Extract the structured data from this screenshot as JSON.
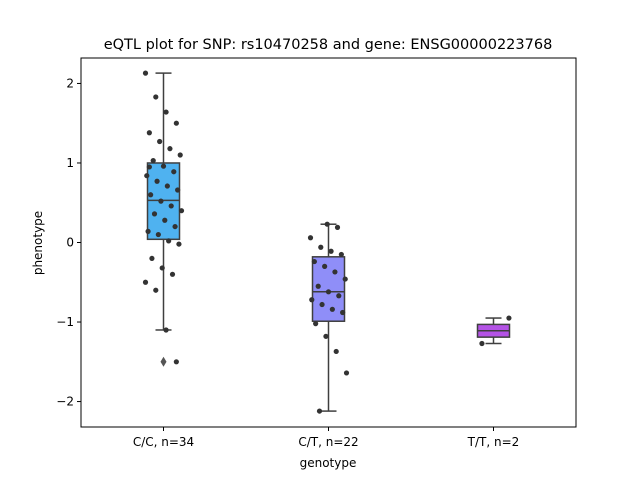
{
  "chart_data": {
    "type": "box",
    "title": "eQTL plot for SNP: rs10470258 and gene: ENSG00000223768",
    "xlabel": "genotype",
    "ylabel": "phenotype",
    "categories": [
      "C/C, n=34",
      "C/T, n=22",
      "T/T, n=2"
    ],
    "ylim": [
      -2.32,
      2.32
    ],
    "yticks": [
      -2,
      -1,
      0,
      1,
      2
    ],
    "ytick_labels": [
      "−2",
      "−1",
      "0",
      "1",
      "2"
    ],
    "grid": false,
    "colors": [
      "#4fb2f0",
      "#8f8ef8",
      "#b453e6"
    ],
    "boxes": [
      {
        "q1": 0.04,
        "median": 0.53,
        "q3": 1.0,
        "whisker_low": -1.1,
        "whisker_high": 2.13,
        "outliers": [
          -1.5
        ]
      },
      {
        "q1": -0.99,
        "median": -0.62,
        "q3": -0.18,
        "whisker_low": -2.12,
        "whisker_high": 0.23,
        "outliers": []
      },
      {
        "q1": -1.19,
        "median": -1.11,
        "q3": -1.03,
        "whisker_low": -1.27,
        "whisker_high": -0.95,
        "outliers": []
      }
    ],
    "points": [
      [
        2.13,
        1.83,
        1.64,
        1.5,
        1.38,
        1.27,
        1.18,
        1.1,
        1.03,
        0.96,
        0.89,
        0.84,
        0.77,
        0.71,
        0.66,
        0.6,
        0.52,
        0.46,
        0.4,
        0.36,
        0.28,
        0.2,
        0.14,
        0.1,
        0.02,
        -0.02,
        -0.2,
        -0.32,
        -0.4,
        -0.5,
        -0.6,
        -1.1,
        -1.5,
        0.95
      ],
      [
        0.23,
        0.19,
        0.06,
        -0.06,
        -0.11,
        -0.15,
        -0.24,
        -0.3,
        -0.37,
        -0.46,
        -0.55,
        -0.62,
        -0.67,
        -0.72,
        -0.78,
        -0.84,
        -0.88,
        -1.02,
        -1.18,
        -1.37,
        -1.64,
        -2.12
      ],
      [
        -0.95,
        -1.27
      ]
    ]
  }
}
